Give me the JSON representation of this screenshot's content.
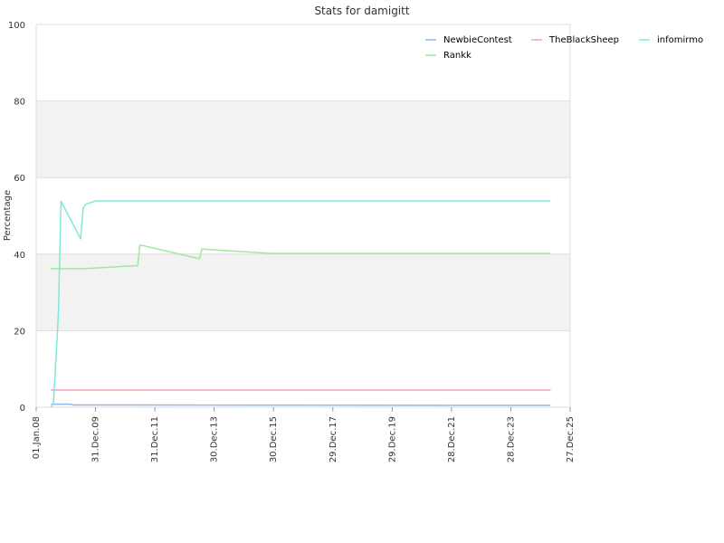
{
  "chart_data": {
    "type": "line",
    "title": "Stats for damigitt",
    "xlabel": "",
    "ylabel": "Percentage",
    "ylim": [
      0,
      100
    ],
    "yticks": [
      0,
      20,
      40,
      60,
      80,
      100
    ],
    "xticks": [
      "01.Jan.08",
      "31.Dec.09",
      "31.Dec.11",
      "30.Dec.13",
      "30.Dec.15",
      "29.Dec.17",
      "29.Dec.19",
      "28.Dec.21",
      "28.Dec.23",
      "27.Dec.25"
    ],
    "x_range": [
      "2008-01-01",
      "2025-12-27"
    ],
    "grid": "horizontal alternating bands",
    "legend_position": "top-right",
    "series": [
      {
        "name": "NewbieContest",
        "color": "#90b8e8",
        "points": [
          [
            "2008-07-01",
            0.8
          ],
          [
            "2009-03-01",
            0.8
          ],
          [
            "2009-04-01",
            0.6
          ],
          [
            "2025-05-01",
            0.5
          ]
        ]
      },
      {
        "name": "TheBlackSheep",
        "color": "#f0a0c0",
        "points": [
          [
            "2008-07-01",
            4.5
          ],
          [
            "2025-05-01",
            4.5
          ]
        ]
      },
      {
        "name": "infomirmo",
        "color": "#80e8d8",
        "points": [
          [
            "2008-07-01",
            0
          ],
          [
            "2008-08-01",
            1
          ],
          [
            "2008-09-01",
            13
          ],
          [
            "2008-10-01",
            25
          ],
          [
            "2008-11-01",
            53.8
          ],
          [
            "2009-07-01",
            44
          ],
          [
            "2009-08-01",
            52
          ],
          [
            "2009-09-01",
            53
          ],
          [
            "2010-01-01",
            53.9
          ],
          [
            "2025-05-01",
            53.9
          ]
        ]
      },
      {
        "name": "Rankk",
        "color": "#a0e8a0",
        "points": [
          [
            "2008-07-01",
            36.2
          ],
          [
            "2009-08-01",
            36.2
          ],
          [
            "2011-06-01",
            37
          ],
          [
            "2011-07-01",
            42.4
          ],
          [
            "2013-07-01",
            38.8
          ],
          [
            "2013-08-01",
            41.3
          ],
          [
            "2015-12-01",
            40.2
          ],
          [
            "2025-05-01",
            40.2
          ]
        ]
      }
    ]
  }
}
